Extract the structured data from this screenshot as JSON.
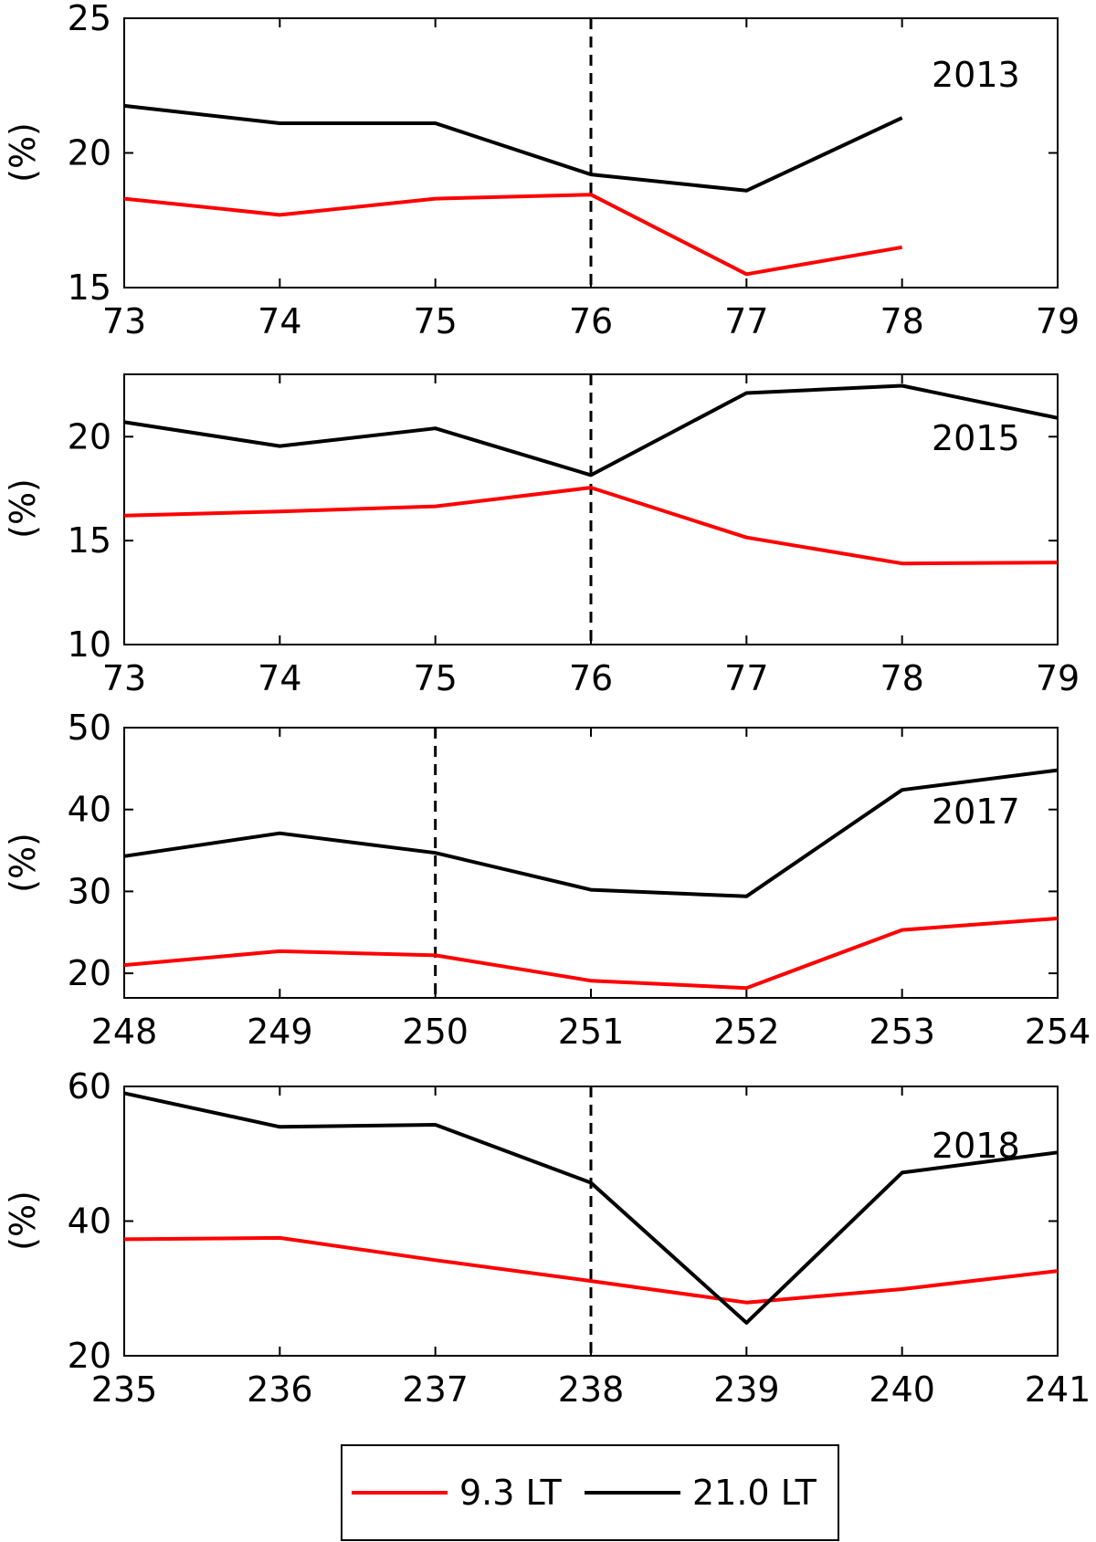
{
  "legend": {
    "entries": [
      {
        "label": "9.3 LT",
        "color": "#ff0000"
      },
      {
        "label": "21.0 LT",
        "color": "#000000"
      }
    ],
    "placement": "bottom-center"
  },
  "chart_data": [
    {
      "type": "line",
      "annotation": "2013",
      "ylabel": "(%)",
      "xlim": [
        73,
        79
      ],
      "ylim": [
        15,
        25
      ],
      "xticks": [
        "73",
        "74",
        "75",
        "76",
        "77",
        "78",
        "79"
      ],
      "yticks": [
        "15",
        "20",
        "25"
      ],
      "event_line_x": 76,
      "grid": false,
      "series": [
        {
          "name": "9.3 LT",
          "color": "#ff0000",
          "x": [
            73,
            74,
            75,
            76,
            77,
            78
          ],
          "values": [
            18.3,
            17.7,
            18.3,
            18.45,
            15.5,
            16.5
          ]
        },
        {
          "name": "21.0 LT",
          "color": "#000000",
          "x": [
            73,
            74,
            75,
            76,
            77,
            78
          ],
          "values": [
            21.75,
            21.1,
            21.1,
            19.2,
            18.6,
            21.3
          ]
        }
      ]
    },
    {
      "type": "line",
      "annotation": "2015",
      "ylabel": "(%)",
      "xlim": [
        73,
        79
      ],
      "ylim": [
        10,
        23
      ],
      "xticks": [
        "73",
        "74",
        "75",
        "76",
        "77",
        "78",
        "79"
      ],
      "yticks": [
        "10",
        "15",
        "20"
      ],
      "event_line_x": 76,
      "grid": false,
      "series": [
        {
          "name": "9.3 LT",
          "color": "#ff0000",
          "x": [
            73,
            74,
            75,
            76,
            77,
            78,
            79
          ],
          "values": [
            16.2,
            16.4,
            16.65,
            17.55,
            15.15,
            13.9,
            13.95
          ]
        },
        {
          "name": "21.0 LT",
          "color": "#000000",
          "x": [
            73,
            74,
            75,
            76,
            77,
            78,
            79
          ],
          "values": [
            20.7,
            19.55,
            20.4,
            18.15,
            22.1,
            22.45,
            20.9
          ]
        }
      ]
    },
    {
      "type": "line",
      "annotation": "2017",
      "ylabel": "(%)",
      "xlim": [
        248,
        254
      ],
      "ylim": [
        17,
        50
      ],
      "xticks": [
        "248",
        "249",
        "250",
        "251",
        "252",
        "253",
        "254"
      ],
      "yticks": [
        "20",
        "30",
        "40",
        "50"
      ],
      "event_line_x": 250,
      "grid": false,
      "series": [
        {
          "name": "9.3 LT",
          "color": "#ff0000",
          "x": [
            248,
            249,
            250,
            251,
            252,
            253,
            254
          ],
          "values": [
            21.0,
            22.7,
            22.2,
            19.1,
            18.2,
            25.3,
            26.7
          ]
        },
        {
          "name": "21.0 LT",
          "color": "#000000",
          "x": [
            248,
            249,
            250,
            251,
            252,
            253,
            254
          ],
          "values": [
            34.3,
            37.1,
            34.7,
            30.2,
            29.4,
            42.4,
            44.8
          ]
        }
      ]
    },
    {
      "type": "line",
      "annotation": "2018",
      "ylabel": "(%)",
      "xlim": [
        235,
        241
      ],
      "ylim": [
        20,
        60
      ],
      "xticks": [
        "235",
        "236",
        "237",
        "238",
        "239",
        "240",
        "241"
      ],
      "yticks": [
        "20",
        "40",
        "60"
      ],
      "event_line_x": 238,
      "grid": false,
      "series": [
        {
          "name": "9.3 LT",
          "color": "#ff0000",
          "x": [
            235,
            236,
            237,
            238,
            239,
            240,
            241
          ],
          "values": [
            37.3,
            37.5,
            34.2,
            31.1,
            27.9,
            29.9,
            32.6
          ]
        },
        {
          "name": "21.0 LT",
          "color": "#000000",
          "x": [
            235,
            236,
            237,
            238,
            239,
            240,
            241
          ],
          "values": [
            59.0,
            54.0,
            54.3,
            45.7,
            24.9,
            47.2,
            50.2
          ]
        }
      ]
    }
  ]
}
